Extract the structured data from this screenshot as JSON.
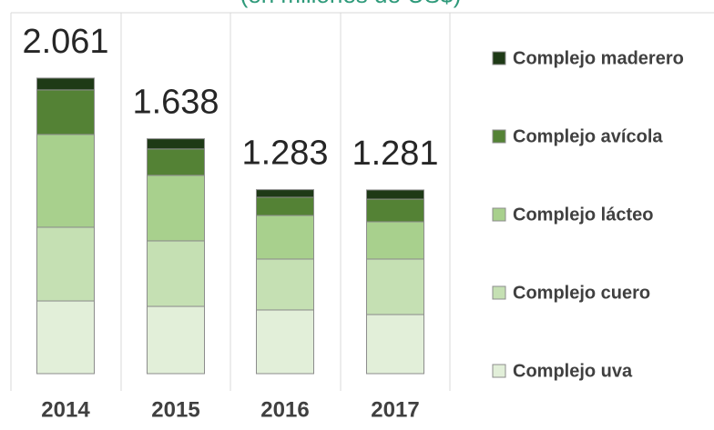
{
  "chart_data": {
    "type": "stacked_bar",
    "subtitle": "(en millones de US$)",
    "categories": [
      "2014",
      "2015",
      "2016",
      "2017"
    ],
    "series": [
      {
        "name": "Complejo uva",
        "color": "#e2efd9",
        "values": [
          507,
          469,
          444,
          412
        ]
      },
      {
        "name": "Complejo cuero",
        "color": "#c5e0b3",
        "values": [
          514,
          457,
          355,
          387
        ]
      },
      {
        "name": "Complejo lácteo",
        "color": "#a8d08d",
        "values": [
          647,
          457,
          304,
          260
        ]
      },
      {
        "name": "Complejo avícola",
        "color": "#548235",
        "values": [
          311,
          184,
          127,
          158
        ]
      },
      {
        "name": "Complejo maderero",
        "color": "#1e3a16",
        "values": [
          82,
          71,
          53,
          64
        ]
      }
    ],
    "totals": {
      "values": [
        2061,
        1638,
        1283,
        1281
      ],
      "value_labels": [
        "2.061",
        "1.638",
        "1.283",
        "1.281"
      ]
    },
    "ylim": [
      0,
      2200
    ]
  }
}
